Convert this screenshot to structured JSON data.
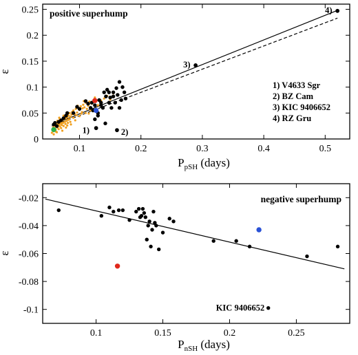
{
  "colors": {
    "black": "#000000",
    "orange": "#f0a020",
    "red": "#e0281c",
    "blue": "#2a52d6",
    "green": "#2cb34a"
  },
  "chart_data": [
    {
      "type": "scatter",
      "title": "positive superhump",
      "xlabel": {
        "main": "P",
        "sub": "pSH",
        "suffix": " (days)"
      },
      "ylabel": "ε",
      "xlim": [
        0.04,
        0.54
      ],
      "ylim": [
        0,
        0.26
      ],
      "xticks": [
        0.1,
        0.2,
        0.3,
        0.4,
        0.5
      ],
      "xtick_labels": [
        "0.1",
        "0.2",
        "0.3",
        "0.4",
        "0.5"
      ],
      "yticks": [
        0,
        0.05,
        0.1,
        0.15,
        0.2,
        0.25
      ],
      "ytick_labels": [
        "0",
        "0.05",
        "0.1",
        "0.15",
        "0.2",
        "0.25"
      ],
      "legend_items": [
        "1) V4633 Sgr",
        "2) BZ Cam",
        "3) KIC 9406652",
        "4) RZ Gru"
      ],
      "legend_position": "right",
      "fits": [
        {
          "style": "solid",
          "x": [
            0.055,
            0.52
          ],
          "y": [
            0.027,
            0.248
          ]
        },
        {
          "style": "dashed",
          "x": [
            0.055,
            0.52
          ],
          "y": [
            0.025,
            0.233
          ]
        }
      ],
      "annotations": [
        {
          "text": "1)",
          "x": 0.127,
          "y": 0.019
        },
        {
          "text": "2)",
          "x": 0.161,
          "y": 0.016
        },
        {
          "text": "3)",
          "x": 0.289,
          "y": 0.143
        },
        {
          "text": "4)",
          "x": 0.52,
          "y": 0.248
        }
      ],
      "series": [
        {
          "color": "orange",
          "marker_size": 1.6,
          "x": [
            0.055,
            0.056,
            0.057,
            0.058,
            0.059,
            0.06,
            0.06,
            0.061,
            0.062,
            0.063,
            0.064,
            0.065,
            0.066,
            0.066,
            0.067,
            0.068,
            0.069,
            0.07,
            0.07,
            0.071,
            0.072,
            0.073,
            0.074,
            0.075,
            0.076,
            0.077,
            0.078,
            0.079,
            0.08,
            0.081,
            0.082,
            0.083,
            0.084,
            0.085,
            0.087,
            0.088,
            0.09,
            0.092,
            0.094,
            0.096,
            0.098,
            0.1,
            0.102,
            0.104,
            0.106,
            0.108,
            0.11,
            0.112,
            0.114,
            0.116,
            0.12,
            0.13,
            0.135,
            0.14,
            0.145,
            0.15,
            0.155,
            0.058,
            0.062,
            0.064,
            0.068,
            0.072,
            0.076,
            0.08,
            0.085,
            0.09,
            0.095,
            0.1,
            0.105,
            0.11,
            0.118,
            0.125,
            0.06,
            0.063,
            0.067,
            0.071,
            0.074,
            0.078,
            0.082,
            0.086,
            0.093,
            0.097,
            0.103,
            0.107,
            0.115
          ],
          "y": [
            0.012,
            0.018,
            0.022,
            0.015,
            0.025,
            0.02,
            0.028,
            0.018,
            0.024,
            0.03,
            0.022,
            0.026,
            0.032,
            0.019,
            0.028,
            0.024,
            0.034,
            0.03,
            0.021,
            0.027,
            0.036,
            0.031,
            0.025,
            0.038,
            0.033,
            0.029,
            0.04,
            0.035,
            0.042,
            0.031,
            0.045,
            0.038,
            0.05,
            0.043,
            0.047,
            0.052,
            0.055,
            0.048,
            0.058,
            0.051,
            0.06,
            0.056,
            0.063,
            0.052,
            0.066,
            0.061,
            0.07,
            0.058,
            0.064,
            0.072,
            0.068,
            0.065,
            0.074,
            0.078,
            0.083,
            0.076,
            0.088,
            0.009,
            0.014,
            0.035,
            0.038,
            0.016,
            0.043,
            0.026,
            0.033,
            0.041,
            0.046,
            0.044,
            0.059,
            0.05,
            0.055,
            0.08,
            0.032,
            0.013,
            0.041,
            0.033,
            0.045,
            0.022,
            0.037,
            0.028,
            0.036,
            0.064,
            0.049,
            0.073,
            0.049
          ]
        },
        {
          "color": "black",
          "marker_size": 2.7,
          "x": [
            0.058,
            0.06,
            0.063,
            0.066,
            0.07,
            0.074,
            0.078,
            0.08,
            0.09,
            0.096,
            0.1,
            0.11,
            0.114,
            0.118,
            0.12,
            0.122,
            0.125,
            0.13,
            0.132,
            0.135,
            0.138,
            0.14,
            0.143,
            0.145,
            0.148,
            0.15,
            0.152,
            0.155,
            0.158,
            0.16,
            0.162,
            0.165,
            0.17,
            0.173,
            0.155,
            0.148,
            0.135,
            0.13,
            0.125,
            0.142,
            0.165,
            0.168,
            0.175
          ],
          "y": [
            0.028,
            0.031,
            0.025,
            0.033,
            0.036,
            0.04,
            0.045,
            0.05,
            0.05,
            0.062,
            0.058,
            0.073,
            0.068,
            0.06,
            0.07,
            0.055,
            0.065,
            0.05,
            0.075,
            0.07,
            0.06,
            0.09,
            0.082,
            0.095,
            0.07,
            0.08,
            0.06,
            0.09,
            0.07,
            0.098,
            0.085,
            0.11,
            0.1,
            0.09,
            0.082,
            0.09,
            0.065,
            0.045,
            0.038,
            0.03,
            0.06,
            0.075,
            0.078
          ]
        },
        {
          "color": "black",
          "marker_size": 2.9,
          "x": [
            0.127,
            0.161,
            0.289,
            0.52
          ],
          "y": [
            0.021,
            0.017,
            0.142,
            0.247
          ]
        },
        {
          "color": "red",
          "marker_size": 3.7,
          "x": [
            0.125
          ],
          "y": [
            0.074
          ]
        },
        {
          "color": "blue",
          "marker_size": 3.7,
          "x": [
            0.127
          ],
          "y": [
            0.055
          ]
        },
        {
          "color": "green",
          "marker_size": 3.7,
          "x": [
            0.058
          ],
          "y": [
            0.018
          ]
        }
      ]
    },
    {
      "type": "scatter",
      "title": "negative superhump",
      "xlabel": {
        "main": "P",
        "sub": "nSH",
        "suffix": " (days)"
      },
      "ylabel": "ε",
      "xlim": [
        0.06,
        0.29
      ],
      "ylim": [
        -0.11,
        -0.01
      ],
      "xticks": [
        0.1,
        0.15,
        0.2,
        0.25
      ],
      "xtick_labels": [
        "0.1",
        "0.15",
        "0.2",
        "0.25"
      ],
      "yticks": [
        -0.02,
        -0.04,
        -0.06,
        -0.08,
        -0.1
      ],
      "ytick_labels": [
        "-0.02",
        "-0.04",
        "-0.06",
        "-0.08",
        "-0.1"
      ],
      "fits": [
        {
          "style": "solid",
          "x": [
            0.062,
            0.286
          ],
          "y": [
            -0.021,
            -0.071
          ]
        }
      ],
      "annotations": [
        {
          "text": "KIC 9406652",
          "x": 0.229,
          "y": -0.099
        }
      ],
      "series": [
        {
          "color": "black",
          "marker_size": 2.7,
          "x": [
            0.072,
            0.104,
            0.11,
            0.113,
            0.117,
            0.12,
            0.125,
            0.13,
            0.132,
            0.133,
            0.134,
            0.135,
            0.136,
            0.137,
            0.138,
            0.139,
            0.14,
            0.141,
            0.142,
            0.143,
            0.144,
            0.145,
            0.147,
            0.15,
            0.155,
            0.158,
            0.188,
            0.205,
            0.215,
            0.258,
            0.281,
            0.229
          ],
          "y": [
            -0.029,
            -0.033,
            -0.027,
            -0.03,
            -0.029,
            -0.029,
            -0.036,
            -0.03,
            -0.028,
            -0.034,
            -0.033,
            -0.028,
            -0.031,
            -0.034,
            -0.05,
            -0.04,
            -0.037,
            -0.055,
            -0.043,
            -0.03,
            -0.038,
            -0.04,
            -0.057,
            -0.045,
            -0.035,
            -0.037,
            -0.051,
            -0.051,
            -0.055,
            -0.062,
            -0.055,
            -0.099
          ]
        },
        {
          "color": "red",
          "marker_size": 3.7,
          "x": [
            0.116
          ],
          "y": [
            -0.069
          ]
        },
        {
          "color": "blue",
          "marker_size": 3.7,
          "x": [
            0.222
          ],
          "y": [
            -0.043
          ]
        }
      ]
    }
  ]
}
